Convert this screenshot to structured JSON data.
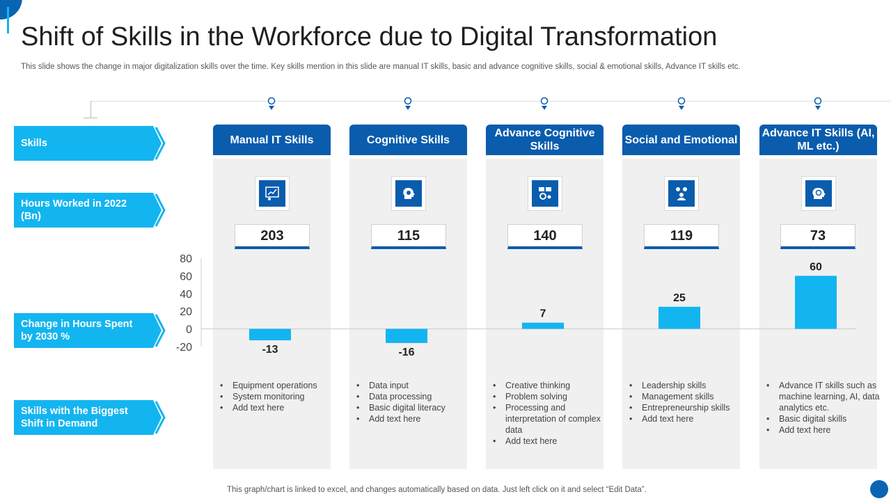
{
  "title": "Shift of Skills in the Workforce due to Digital Transformation",
  "subtitle": "This slide shows the change in major digitalization skills over the time. Key skills mention in this slide are manual IT skills, basic and advance cognitive skills, social & emotional skills, Advance IT  skills etc.",
  "row_labels": {
    "skills": "Skills",
    "hours": "Hours Worked in 2022 (Bn)",
    "change": "Change in Hours Spent by 2030 %",
    "shift": "Skills with the Biggest Shift in Demand"
  },
  "columns": [
    {
      "heading": "Manual IT Skills",
      "icon": "finance-chart-icon",
      "hours": "203",
      "bullets": [
        "Equipment operations",
        "System monitoring",
        "Add text here"
      ]
    },
    {
      "heading": "Cognitive Skills",
      "icon": "head-gear-icon",
      "hours": "115",
      "bullets": [
        "Data input",
        "Data processing",
        "Basic digital literacy",
        "Add text here"
      ]
    },
    {
      "heading": "Advance Cognitive Skills",
      "icon": "analytics-gear-icon",
      "hours": "140",
      "bullets": [
        "Creative  thinking",
        "Problem solving",
        "Processing and interpretation of complex data",
        "Add text here"
      ]
    },
    {
      "heading": "Social and Emotional",
      "icon": "people-gears-icon",
      "hours": "119",
      "bullets": [
        "Leadership skills",
        "Management skills",
        "Entrepreneurship skills",
        "Add text here"
      ]
    },
    {
      "heading": "Advance IT Skills (AI, ML etc.)",
      "icon": "ai-head-icon",
      "hours": "73",
      "bullets": [
        "Advance IT skills such as machine learning, AI, data analytics etc.",
        "Basic digital skills",
        "Add text here"
      ]
    }
  ],
  "chart_data": {
    "type": "bar",
    "categories": [
      "Manual IT Skills",
      "Cognitive Skills",
      "Advance Cognitive Skills",
      "Social and Emotional",
      "Advance IT Skills (AI, ML etc.)"
    ],
    "values": [
      -13,
      -16,
      7,
      25,
      60
    ],
    "data_labels": [
      "-13",
      "-16",
      "7",
      "25",
      "60"
    ],
    "yticks": [
      80,
      60,
      40,
      20,
      0,
      -20
    ],
    "ylim": [
      -20,
      80
    ],
    "bar_color": "#13b5f0",
    "grid": false
  },
  "footer": "This graph/chart is linked to excel, and changes automatically based on data. Just left click on it and select “Edit Data”.",
  "colors": {
    "dark_blue": "#0a5cad",
    "light_blue": "#13b5f0",
    "panel_gray": "#f0f0f0"
  }
}
